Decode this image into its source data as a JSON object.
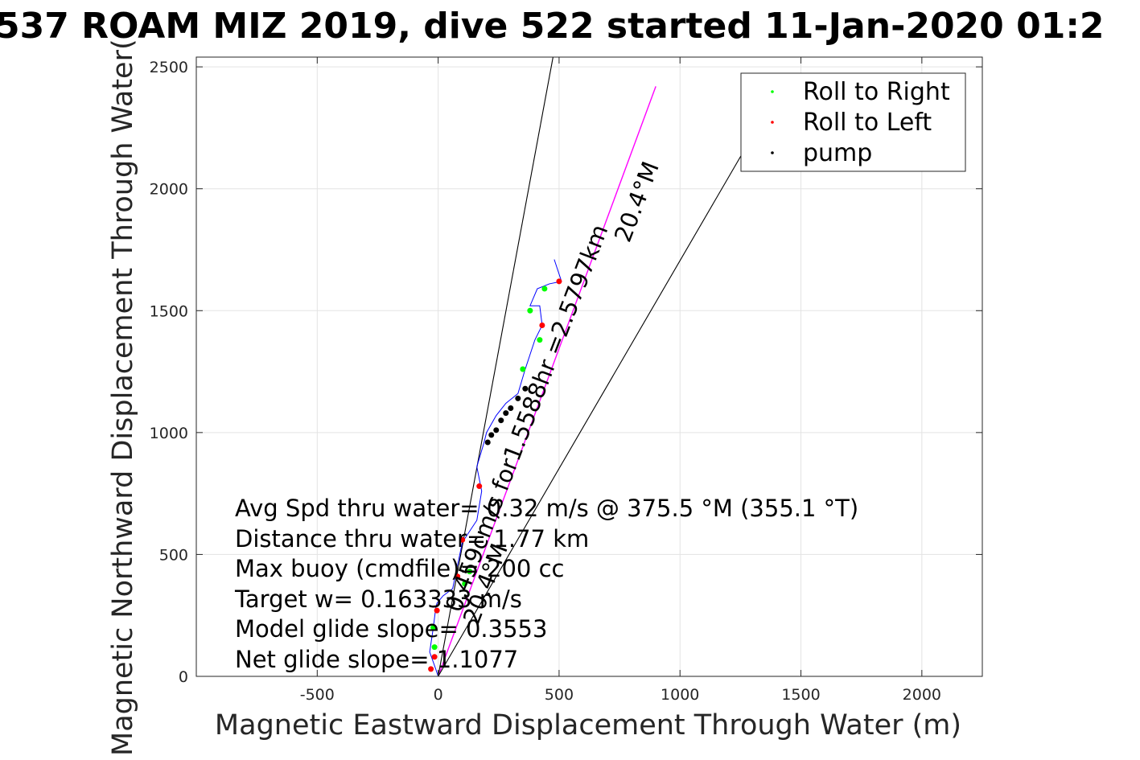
{
  "chart_data": {
    "type": "line",
    "title": "537 ROAM MIZ 2019, dive 522 started 11-Jan-2020 01:2",
    "xlabel": "Magnetic Eastward Displacement Through Water (m)",
    "ylabel": "Magnetic Northward Displacement Through Water(",
    "xlim": [
      -1000,
      2250
    ],
    "ylim": [
      0,
      2540
    ],
    "xticks": [
      -500,
      0,
      500,
      1000,
      1500,
      2000
    ],
    "xtick_labels": [
      "-500",
      "0",
      "500",
      "1000",
      "1500",
      "2000"
    ],
    "yticks": [
      0,
      500,
      1000,
      1500,
      2000,
      2500
    ],
    "ytick_labels": [
      "0",
      "500",
      "1000",
      "1500",
      "2000",
      "2500"
    ],
    "grid": true,
    "legend": {
      "placement": "top-right",
      "entries": [
        {
          "label": "Roll to Right",
          "color": "#00ff00"
        },
        {
          "label": "Roll to Left",
          "color": "#ff0000"
        },
        {
          "label": "pump",
          "color": "#000000"
        }
      ]
    },
    "track": {
      "name": "track",
      "color": "#0000ff",
      "x": [
        0,
        -10,
        -35,
        -20,
        -10,
        -5,
        20,
        60,
        100,
        160,
        180,
        160,
        190,
        200,
        240,
        280,
        330,
        360,
        400,
        430,
        420,
        380,
        410,
        460,
        510,
        480
      ],
      "y": [
        0,
        30,
        100,
        200,
        280,
        300,
        330,
        360,
        550,
        640,
        760,
        860,
        960,
        1000,
        1070,
        1120,
        1160,
        1260,
        1380,
        1440,
        1520,
        1520,
        1590,
        1610,
        1620,
        1710
      ]
    },
    "roll_right_points": {
      "color": "#00ff00",
      "x": [
        -15,
        -20,
        110,
        130,
        350,
        380,
        420,
        440
      ],
      "y": [
        120,
        200,
        380,
        430,
        1260,
        1500,
        1380,
        1590
      ]
    },
    "roll_left_points": {
      "color": "#ff0000",
      "x": [
        -30,
        -15,
        -5,
        80,
        100,
        170,
        430,
        500
      ],
      "y": [
        30,
        80,
        270,
        410,
        560,
        780,
        1440,
        1620
      ]
    },
    "pump_points": {
      "color": "#000000",
      "x": [
        205,
        220,
        240,
        260,
        280,
        300,
        330,
        360
      ],
      "y": [
        960,
        990,
        1010,
        1050,
        1080,
        1100,
        1140,
        1180
      ]
    },
    "reference_lines": [
      {
        "name": "current-line",
        "color": "#ff00ff",
        "x": [
          0,
          900
        ],
        "y": [
          0,
          2420
        ]
      },
      {
        "name": "left-bound-line",
        "color": "#000000",
        "x": [
          0,
          475
        ],
        "y": [
          0,
          2540
        ]
      },
      {
        "name": "right-bound-line",
        "color": "#000000",
        "x": [
          0,
          1255
        ],
        "y": [
          0,
          2140
        ]
      }
    ],
    "annotations": [
      {
        "text": "Avg Spd thru water=  0.32 m/s @ 375.5 °M (355.1 °T)"
      },
      {
        "text": "Distance thru water=  1.77 km"
      },
      {
        "text": "Max buoy (cmdfile)= 200 cc"
      },
      {
        "text": "Target w= 0.163333 m/s"
      },
      {
        "text": "Model glide slope= 0.3553"
      },
      {
        "text": "Net glide slope= 1.1077"
      },
      {
        "text": "0.459cm/s for1.5588hr =2.5797km"
      },
      {
        "text": "20.4°M"
      },
      {
        "text": "20.4°M"
      }
    ]
  }
}
